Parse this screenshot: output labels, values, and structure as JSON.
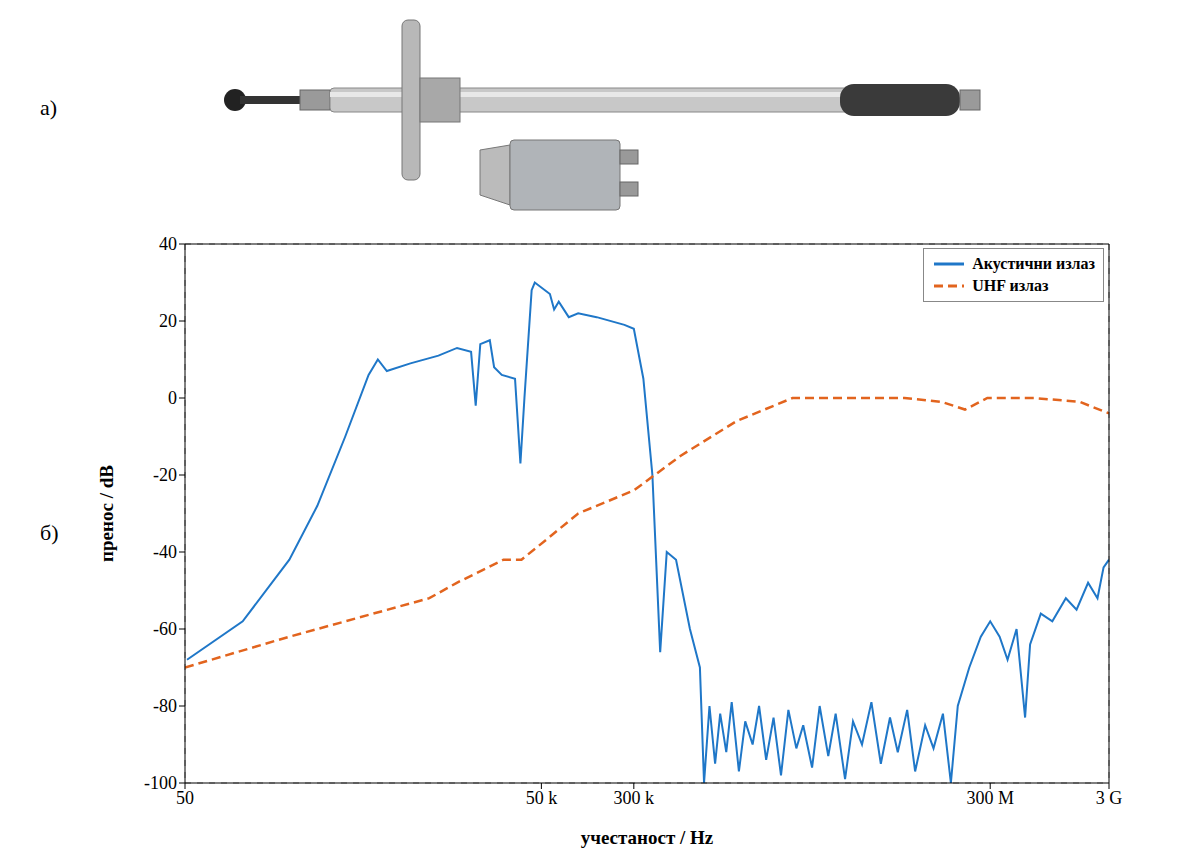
{
  "panels": {
    "a": "а)",
    "b": "б)"
  },
  "chart_data": {
    "type": "line",
    "x_label": "учестаност / Hz",
    "y_label": "пренос / dB",
    "log": "x",
    "grid": true,
    "legend": "upper right",
    "xlim": [
      50,
      3000000000
    ],
    "xticks": [
      50,
      {
        "value": 50000,
        "label": "50 k"
      },
      {
        "value": 300000,
        "label": "300 k"
      },
      {
        "value": 300000000,
        "label": "300 M"
      },
      {
        "value": 3000000000,
        "label": "3 G"
      }
    ],
    "ylim": [
      -100,
      40
    ],
    "yticks": [
      -100,
      -80,
      -60,
      -40,
      -20,
      0,
      20,
      40
    ],
    "series": [
      {
        "name": "Акустични излаз",
        "color": "#1f77c8",
        "line_style": "solid",
        "x": [
          52,
          153,
          378,
          650,
          1117,
          1755,
          2100,
          2500,
          3950,
          6800,
          9750,
          12800,
          14000,
          15300,
          18400,
          20000,
          23200,
          30000,
          33300,
          36000,
          41400,
          44000,
          59000,
          64000,
          70000,
          85000,
          102000,
          146000,
          250000,
          300000,
          361000,
          430000,
          500000,
          568000,
          680000,
          890000,
          1080000,
          1170000,
          1300000,
          1450000,
          1600000,
          1800000,
          2000000,
          2300000,
          2600000,
          3000000,
          3400000,
          3900000,
          4500000,
          5200000,
          6000000,
          7000000,
          8000000,
          9500000,
          11000000,
          13000000,
          15000000,
          18000000,
          21000000,
          25000000,
          30000000,
          36000000,
          43000000,
          50000000,
          60000000,
          70000000,
          85000000,
          100000000,
          120000000,
          140000000,
          160000000,
          200000000,
          250000000,
          300000000,
          360000000,
          420000000,
          500000000,
          590000000,
          650000000,
          800000000,
          1000000000,
          1300000000,
          1600000000,
          2000000000,
          2400000000,
          2700000000,
          3000000000
        ],
        "values": [
          -68,
          -58,
          -42,
          -28,
          -10,
          6,
          10,
          7,
          9,
          11,
          13,
          12,
          -2,
          14,
          15,
          8,
          6,
          5,
          -17,
          0,
          28,
          30,
          27,
          23,
          25,
          21,
          22,
          21,
          19,
          18,
          5,
          -20,
          -66,
          -40,
          -42,
          -60,
          -70,
          -100,
          -80,
          -95,
          -82,
          -92,
          -79,
          -97,
          -84,
          -90,
          -80,
          -94,
          -83,
          -98,
          -81,
          -91,
          -85,
          -96,
          -80,
          -93,
          -82,
          -99,
          -84,
          -90,
          -79,
          -95,
          -83,
          -92,
          -81,
          -97,
          -85,
          -91,
          -82,
          -100,
          -80,
          -70,
          -62,
          -58,
          -62,
          -68,
          -60,
          -83,
          -64,
          -56,
          -58,
          -52,
          -55,
          -48,
          -52,
          -44,
          -42
        ]
      },
      {
        "name": "UHF излаз",
        "color": "#e2641e",
        "line_style": "dashed",
        "x": [
          50,
          378,
          5700,
          9700,
          24000,
          34000,
          54000,
          102000,
          300000,
          745000,
          2200000,
          6500000,
          19000000,
          57000000,
          117000000,
          184000000,
          284000000,
          700000000,
          1700000000,
          3000000000
        ],
        "values": [
          -70,
          -62,
          -52,
          -48,
          -42,
          -42,
          -37,
          -30,
          -24,
          -15,
          -6,
          0,
          0,
          0,
          -1,
          -3,
          0,
          0,
          -1,
          -4
        ]
      }
    ]
  }
}
